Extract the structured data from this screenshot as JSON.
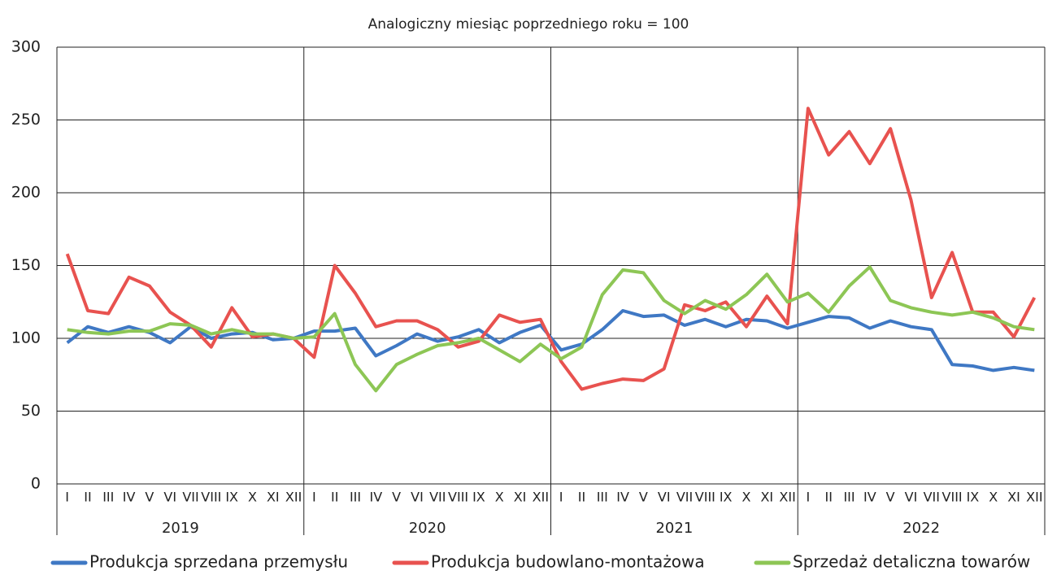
{
  "chart_data": {
    "type": "line",
    "title": "Analogiczny miesiąc poprzedniego roku = 100",
    "categories": [
      "I",
      "II",
      "III",
      "IV",
      "V",
      "VI",
      "VII",
      "VIII",
      "IX",
      "X",
      "XI",
      "XII",
      "I",
      "II",
      "III",
      "IV",
      "V",
      "VI",
      "VII",
      "VIII",
      "IX",
      "X",
      "XI",
      "XII",
      "I",
      "II",
      "III",
      "IV",
      "V",
      "VI",
      "VII",
      "VIII",
      "IX",
      "X",
      "XI",
      "XII",
      "I",
      "II",
      "III",
      "IV",
      "V",
      "VI",
      "VII",
      "VIII",
      "IX",
      "X",
      "XI",
      "XII"
    ],
    "year_groups": [
      "2019",
      "2020",
      "2021",
      "2022"
    ],
    "series": [
      {
        "name": "Produkcja sprzedana przemysłu",
        "color": "#3f78c4",
        "values": [
          97,
          108,
          104,
          108,
          104,
          97,
          108,
          100,
          103,
          104,
          99,
          100,
          105,
          105,
          107,
          88,
          95,
          103,
          98,
          101,
          106,
          97,
          104,
          109,
          92,
          96,
          106,
          119,
          115,
          116,
          109,
          113,
          108,
          113,
          112,
          107,
          111,
          115,
          114,
          107,
          112,
          108,
          106,
          82,
          81,
          78,
          80,
          78
        ]
      },
      {
        "name": "Produkcja budowlano-montażowa",
        "color": "#e8524f",
        "values": [
          158,
          119,
          117,
          142,
          136,
          118,
          109,
          94,
          121,
          101,
          103,
          100,
          87,
          150,
          131,
          108,
          112,
          112,
          106,
          94,
          98,
          116,
          111,
          113,
          84,
          65,
          69,
          72,
          71,
          79,
          123,
          119,
          125,
          108,
          129,
          110,
          258,
          226,
          242,
          220,
          244,
          195,
          128,
          159,
          118,
          118,
          101,
          128
        ]
      },
      {
        "name": "Sprzedaż detaliczna towarów",
        "color": "#8dc655",
        "values": [
          106,
          104,
          103,
          105,
          105,
          110,
          109,
          103,
          106,
          103,
          103,
          100,
          101,
          117,
          82,
          64,
          82,
          89,
          95,
          97,
          100,
          92,
          84,
          96,
          86,
          94,
          130,
          147,
          145,
          126,
          117,
          126,
          120,
          130,
          144,
          125,
          131,
          118,
          136,
          149,
          126,
          121,
          118,
          116,
          118,
          114,
          108,
          106
        ]
      }
    ],
    "ylim": [
      0,
      300
    ],
    "yticks": [
      0,
      50,
      100,
      150,
      200,
      250,
      300
    ],
    "grid": true,
    "legend": "bottom"
  }
}
